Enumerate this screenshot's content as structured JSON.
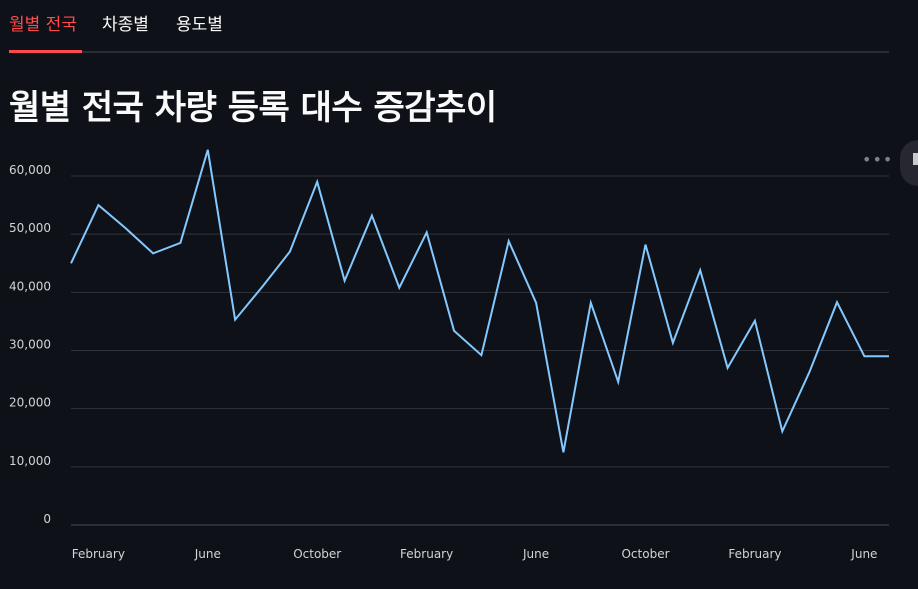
{
  "tabs": [
    {
      "label": "월별 전국",
      "active": true
    },
    {
      "label": "차종별",
      "active": false
    },
    {
      "label": "용도별",
      "active": false
    }
  ],
  "page_title": "월별 전국 차량 등록 대수 증감추이",
  "menu_icon": "more-horizontal-icon",
  "colors": {
    "background": "#0e1117",
    "accent": "#ff4b4b",
    "line": "#83c9ff",
    "grid": "#31333c",
    "text": "#fafafa"
  },
  "chart_data": {
    "type": "line",
    "title": "",
    "xlabel": "",
    "ylabel": "",
    "ylim": [
      0,
      66000
    ],
    "y_ticks": [
      "0",
      "10,000",
      "20,000",
      "30,000",
      "40,000",
      "50,000",
      "60,000"
    ],
    "x_tick_labels": [
      "February",
      "June",
      "October",
      "February",
      "June",
      "October",
      "February",
      "June"
    ],
    "x_tick_months": [
      2,
      6,
      10,
      14,
      18,
      22,
      26,
      30
    ],
    "x_range": [
      1,
      30.9
    ],
    "grid": true,
    "series": [
      {
        "x": [
          1,
          2,
          3,
          4,
          5,
          6,
          7,
          8,
          9,
          10,
          11,
          12,
          13,
          14,
          15,
          16,
          17,
          18,
          19,
          20,
          21,
          22,
          23,
          24,
          25,
          26,
          27,
          28,
          29,
          30,
          30.9
        ],
        "values": [
          45000,
          55000,
          51000,
          46700,
          48500,
          64500,
          35300,
          41000,
          47000,
          59000,
          42000,
          53200,
          40800,
          50300,
          33400,
          29200,
          48800,
          38200,
          12500,
          38200,
          24600,
          48200,
          31300,
          43800,
          27000,
          35100,
          16100,
          26400,
          38300,
          29000,
          29000
        ]
      }
    ]
  }
}
